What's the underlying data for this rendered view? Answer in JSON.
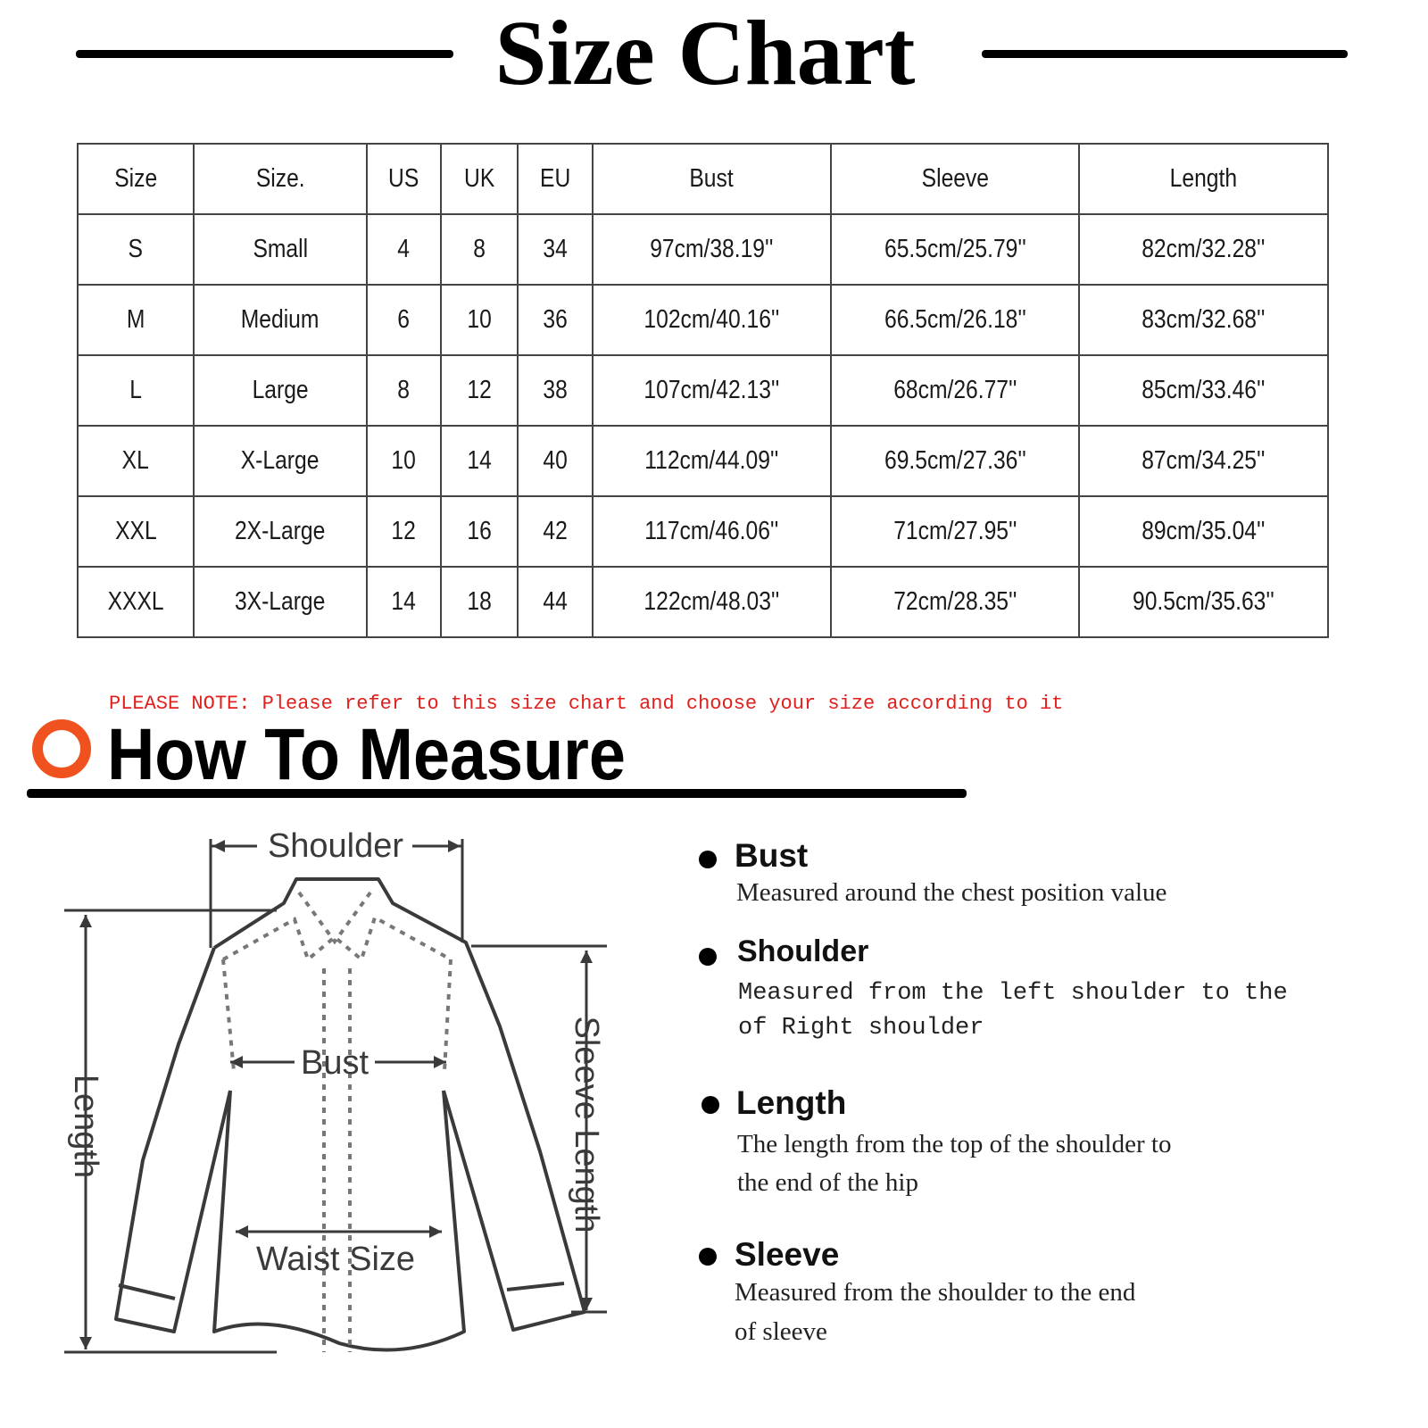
{
  "title": "Size Chart",
  "table": {
    "headers": [
      "Size",
      "Size.",
      "US",
      "UK",
      "EU",
      "Bust",
      "Sleeve",
      "Length"
    ],
    "rows": [
      [
        "S",
        "Small",
        "4",
        "8",
        "34",
        "97cm/38.19''",
        "65.5cm/25.79''",
        "82cm/32.28''"
      ],
      [
        "M",
        "Medium",
        "6",
        "10",
        "36",
        "102cm/40.16''",
        "66.5cm/26.18''",
        "83cm/32.68''"
      ],
      [
        "L",
        "Large",
        "8",
        "12",
        "38",
        "107cm/42.13''",
        "68cm/26.77''",
        "85cm/33.46''"
      ],
      [
        "XL",
        "X-Large",
        "10",
        "14",
        "40",
        "112cm/44.09''",
        "69.5cm/27.36''",
        "87cm/34.25''"
      ],
      [
        "XXL",
        "2X-Large",
        "12",
        "16",
        "42",
        "117cm/46.06''",
        "71cm/27.95''",
        "89cm/35.04''"
      ],
      [
        "XXXL",
        "3X-Large",
        "14",
        "18",
        "44",
        "122cm/48.03''",
        "72cm/28.35''",
        "90.5cm/35.63''"
      ]
    ]
  },
  "note": "PLEASE NOTE: Please refer to this size chart and choose your size according to it",
  "note_color": "#e0201c",
  "accent_color": "#f0521f",
  "how_to_measure": {
    "heading": "How To Measure",
    "diagram_labels": {
      "shoulder": "Shoulder",
      "bust": "Bust",
      "waist": "Waist Size",
      "length": "Length",
      "sleeve_length": "Sleeve Length"
    },
    "items": [
      {
        "title": "Bust",
        "lines": [
          "Measured around the chest position value"
        ]
      },
      {
        "title": "Shoulder",
        "lines": [
          "Measured from the left shoulder to the",
          "of Right shoulder"
        ]
      },
      {
        "title": "Length",
        "lines": [
          "The length from the top of the shoulder to",
          "the end of the hip"
        ]
      },
      {
        "title": "Sleeve",
        "lines": [
          "Measured from the shoulder to the end",
          "of sleeve"
        ]
      }
    ]
  }
}
